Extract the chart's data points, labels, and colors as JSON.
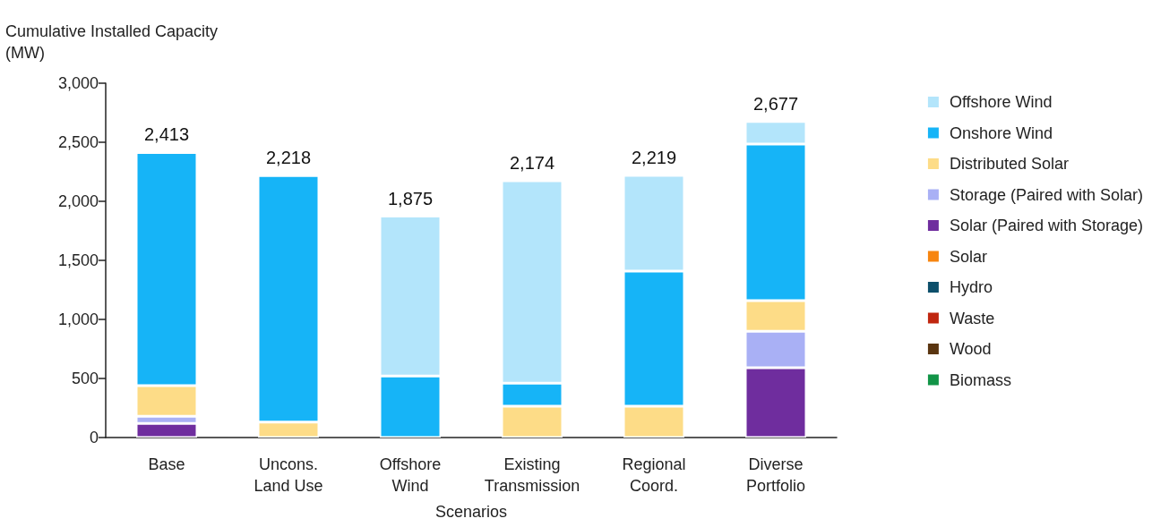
{
  "chart_data": {
    "type": "bar",
    "stacked": true,
    "ylabel": "Cumulative Installed Capacity\n(MW)",
    "xlabel": "Scenarios",
    "categories": [
      "Base",
      "Uncons.\nLand Use",
      "Offshore\nWind",
      "Existing\nTransmission",
      "Regional\nCoord.",
      "Diverse\nPortfolio"
    ],
    "series": [
      {
        "name": "Biomass",
        "color": "#129447",
        "values": [
          null,
          null,
          null,
          null,
          null,
          null
        ]
      },
      {
        "name": "Wood",
        "color": "#5a3510",
        "values": [
          null,
          null,
          null,
          null,
          null,
          null
        ]
      },
      {
        "name": "Waste",
        "color": "#c0260f",
        "values": [
          null,
          null,
          null,
          null,
          null,
          null
        ]
      },
      {
        "name": "Hydro",
        "color": "#0d4f6b",
        "values": [
          null,
          null,
          null,
          null,
          null,
          null
        ]
      },
      {
        "name": "Solar",
        "color": "#f7850f",
        "values": [
          null,
          null,
          null,
          null,
          null,
          null
        ]
      },
      {
        "name": "Solar (Paired with Storage)",
        "color": "#6f2d9e",
        "values": [
          120,
          0,
          0,
          0,
          0,
          590
        ]
      },
      {
        "name": "Storage (Paired with Solar)",
        "color": "#a9b0f5",
        "values": [
          60,
          0,
          0,
          0,
          0,
          310
        ]
      },
      {
        "name": "Distributed Solar",
        "color": "#fddc87",
        "values": [
          260,
          130,
          0,
          265,
          265,
          260
        ]
      },
      {
        "name": "Onshore Wind",
        "color": "#16b4f7",
        "values": [
          1973,
          2088,
          520,
          195,
          1145,
          1325
        ]
      },
      {
        "name": "Offshore Wind",
        "color": "#b3e5fb",
        "values": [
          0,
          0,
          1355,
          1714,
          809,
          192
        ]
      }
    ],
    "totals": [
      "2,413",
      "2,218",
      "1,875",
      "2,174",
      "2,219",
      "2,677"
    ],
    "ylim": [
      0,
      3000
    ],
    "yticks": [
      0,
      500,
      {
        "value": 1000,
        "label": "1,000"
      },
      {
        "value": 1500,
        "label": "1,500"
      },
      {
        "value": 2000,
        "label": "2,000"
      },
      {
        "value": 2500,
        "label": "2,500"
      },
      {
        "value": 3000,
        "label": "3,000"
      }
    ],
    "grid": false,
    "legend": "right"
  }
}
